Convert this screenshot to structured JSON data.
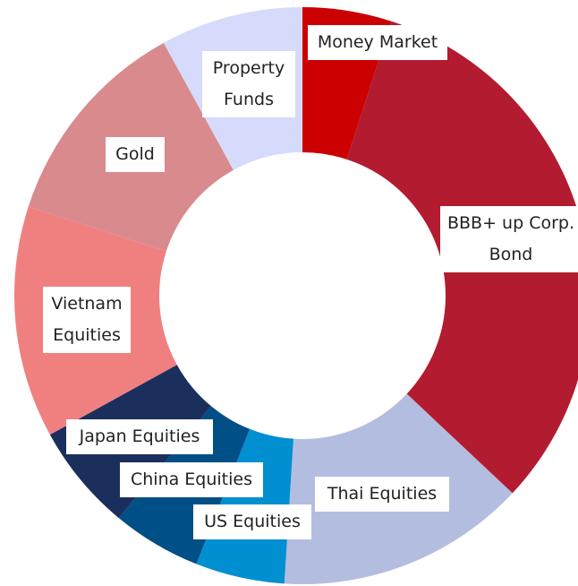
{
  "chart_data": {
    "type": "donut",
    "categories": [
      "Money Market",
      "BBB+ up Corp. Bond",
      "Thai Equities",
      "US Equities",
      "China Equities",
      "Japan Equities",
      "Vietnam Equities",
      "Gold",
      "Property Funds"
    ],
    "values": [
      5,
      32,
      14,
      5,
      5,
      6,
      13,
      12,
      8
    ],
    "colors": [
      "#cc0000",
      "#b31b30",
      "#b3bde0",
      "#008fd0",
      "#004f86",
      "#1b2f5c",
      "#f08080",
      "#d98a8d",
      "#d6dbfb"
    ]
  }
}
